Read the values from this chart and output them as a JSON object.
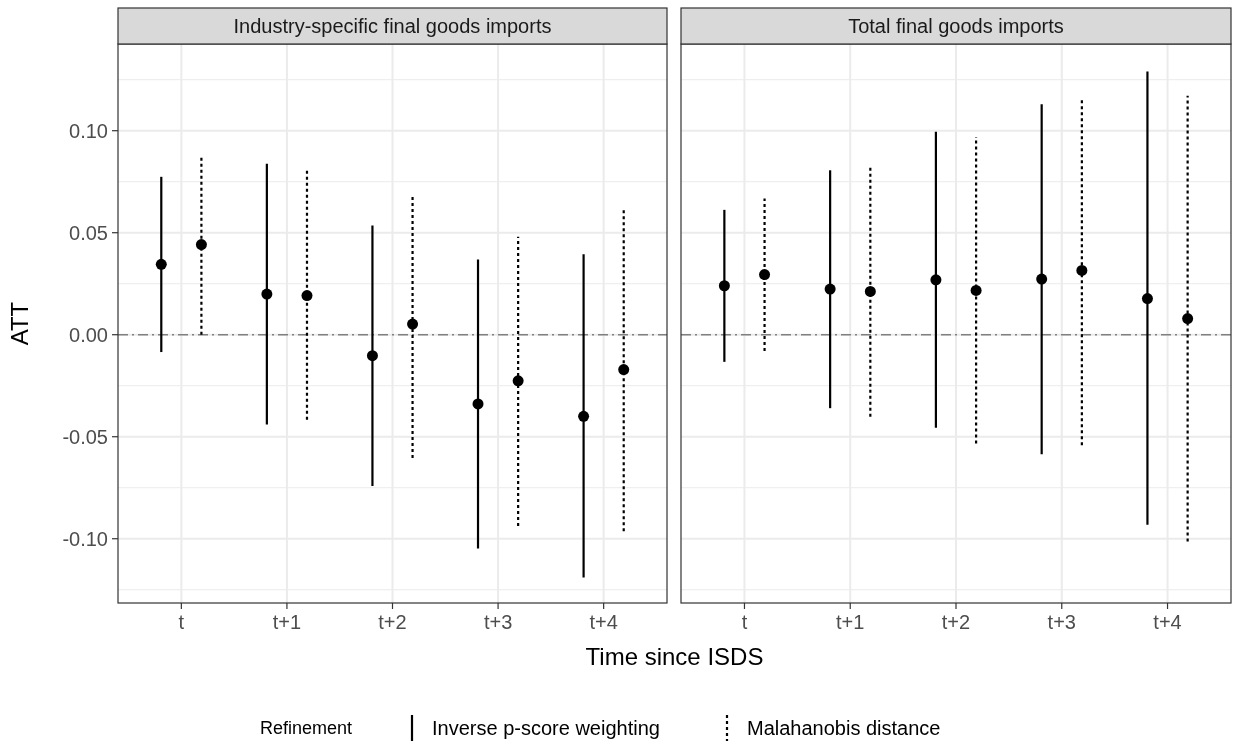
{
  "chart_data": [
    {
      "type": "scatter",
      "title": "Industry-specific final goods imports",
      "xlabel": "Time since ISDS",
      "ylabel": "ATT",
      "legend_title": "Refinement",
      "legend": "bottom",
      "grid": true,
      "categories": [
        "t",
        "t+1",
        "t+2",
        "t+3",
        "t+4"
      ],
      "ylim": [
        -0.1315,
        0.1425
      ],
      "yticks": [
        {
          "value": -0.1,
          "label": "-0.10"
        },
        {
          "value": -0.05,
          "label": "-0.05"
        },
        {
          "value": 0,
          "label": "0.00"
        },
        {
          "value": 0.05,
          "label": "0.05"
        },
        {
          "value": 0.1,
          "label": "0.10"
        }
      ],
      "ref_lines": [
        {
          "axis": "y",
          "value": 0,
          "color": "#808080"
        }
      ],
      "series": [
        {
          "name": "Inverse p-score weighting",
          "color": "#000000",
          "line_style": "solid",
          "marker": "circle",
          "values": [
            0.0345,
            0.0199,
            -0.0103,
            -0.0339,
            -0.04
          ],
          "errors": [
            [
              -0.0085,
              0.0774
            ],
            [
              -0.044,
              0.0838
            ],
            [
              -0.0742,
              0.0535
            ],
            [
              -0.1048,
              0.0369
            ],
            [
              -0.119,
              0.0394
            ]
          ]
        },
        {
          "name": "Malahanobis distance",
          "color": "#000000",
          "line_style": "dotted",
          "marker": "circle",
          "values": [
            0.0442,
            0.0192,
            0.0052,
            -0.0226,
            -0.0171
          ],
          "errors": [
            [
              0.0,
              0.0874
            ],
            [
              -0.0417,
              0.0805
            ],
            [
              -0.0604,
              0.0684
            ],
            [
              -0.0938,
              0.048
            ],
            [
              -0.0963,
              0.062
            ]
          ]
        }
      ]
    },
    {
      "type": "scatter",
      "title": "Total final goods imports",
      "grid": true,
      "tick_labels": "x",
      "categories": [
        "t",
        "t+1",
        "t+2",
        "t+3",
        "t+4"
      ],
      "ylim": [
        -0.1315,
        0.1425
      ],
      "yticks": [
        {
          "value": -0.1,
          "label": null
        },
        {
          "value": -0.05,
          "label": null
        },
        {
          "value": 0,
          "label": null
        },
        {
          "value": 0.05,
          "label": null
        },
        {
          "value": 0.1,
          "label": null
        }
      ],
      "ref_lines": [
        {
          "axis": "y",
          "value": 0,
          "color": "#808080"
        }
      ],
      "series": [
        {
          "color": "#000000",
          "line_style": "solid",
          "marker": "circle",
          "values": [
            0.024,
            0.0224,
            0.0269,
            0.0273,
            0.0177
          ],
          "errors": [
            [
              -0.0133,
              0.0612
            ],
            [
              -0.036,
              0.0806
            ],
            [
              -0.0456,
              0.0995
            ],
            [
              -0.0586,
              0.113
            ],
            [
              -0.0932,
              0.129
            ]
          ]
        },
        {
          "color": "#000000",
          "line_style": "dotted",
          "marker": "circle",
          "values": [
            0.0295,
            0.0212,
            0.0217,
            0.0315,
            0.0079
          ],
          "errors": [
            [
              -0.008,
              0.0668
            ],
            [
              -0.0402,
              0.0829
            ],
            [
              -0.0533,
              0.0969
            ],
            [
              -0.0542,
              0.1154
            ],
            [
              -0.1014,
              0.1171
            ]
          ]
        }
      ]
    }
  ]
}
